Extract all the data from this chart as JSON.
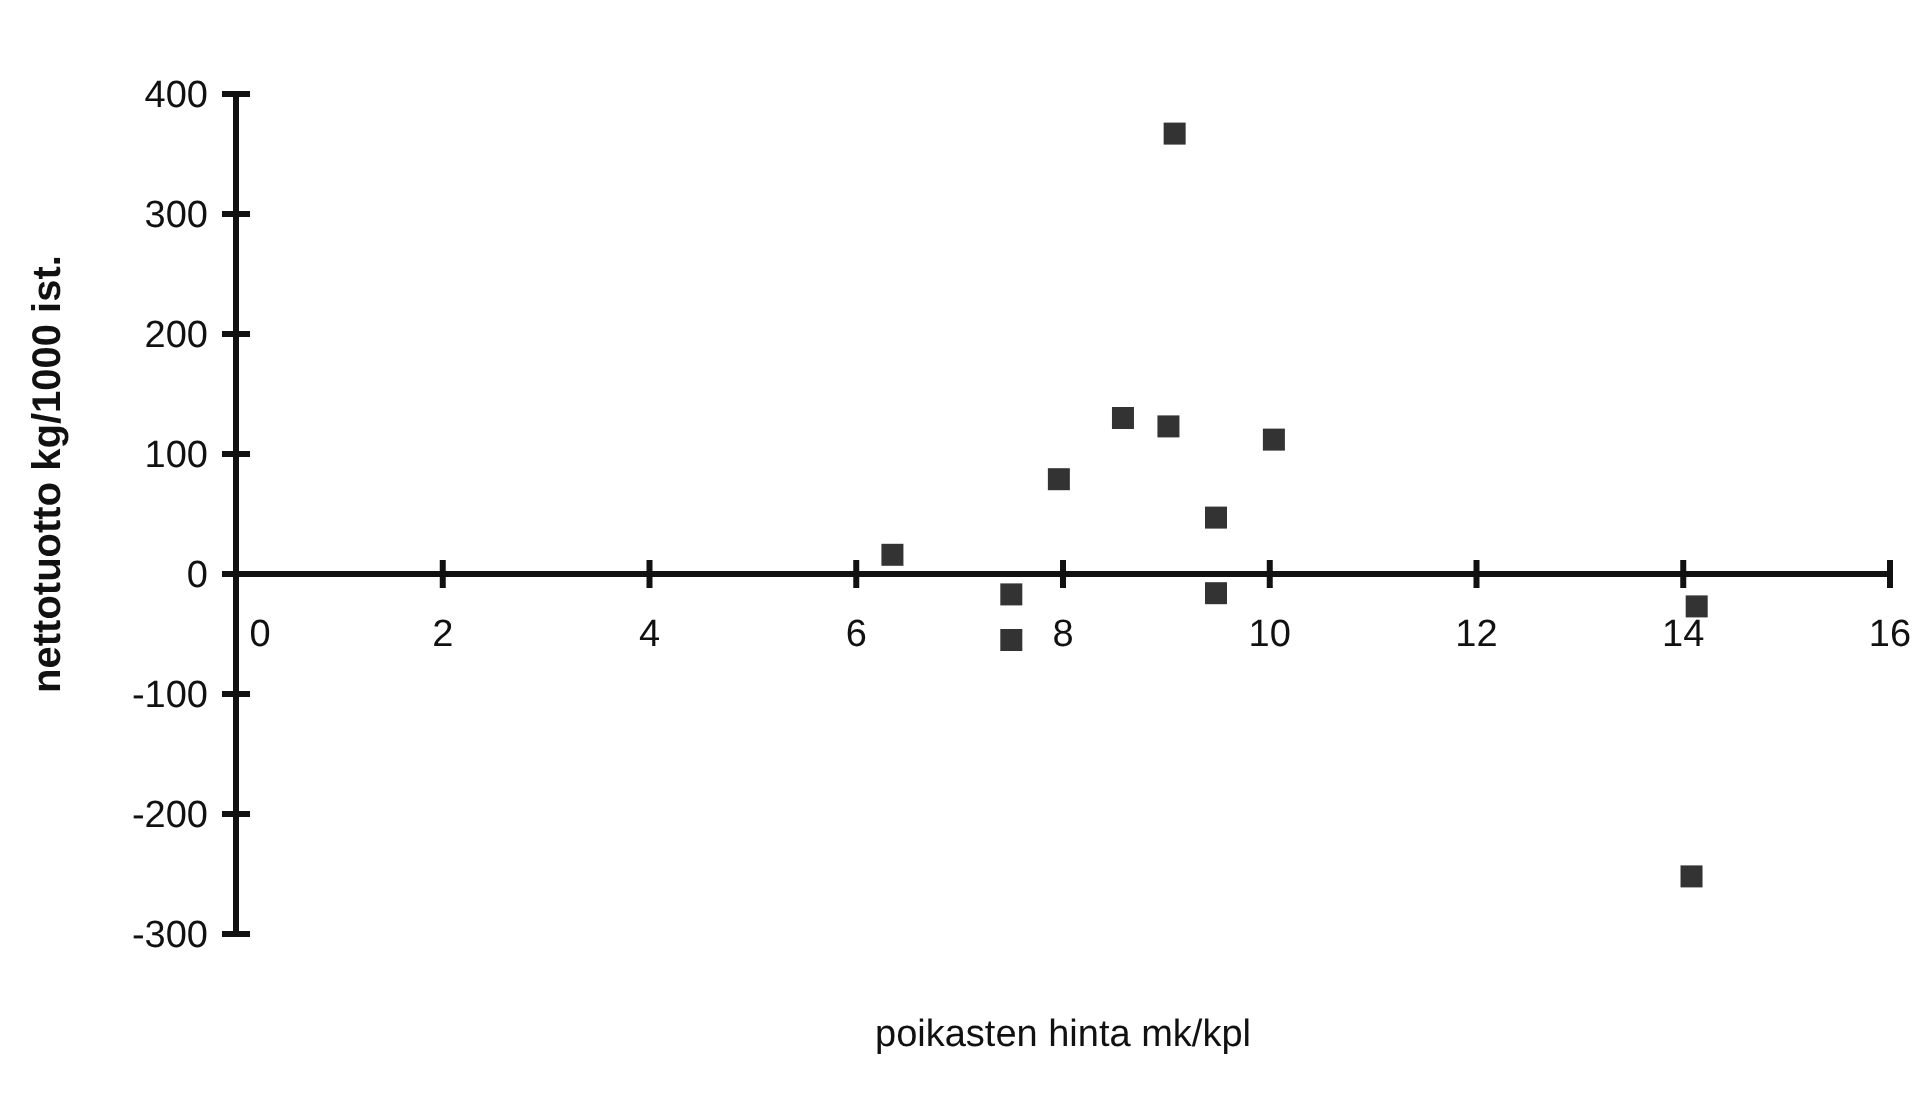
{
  "chart_data": {
    "type": "scatter",
    "xlabel": "poikasten hinta mk/kpl",
    "ylabel": "nettotuotto kg/1000 ist.",
    "xlim": [
      0,
      16
    ],
    "xticks": [
      0,
      2,
      4,
      6,
      8,
      10,
      12,
      14,
      16
    ],
    "ylim": [
      -300,
      400
    ],
    "yticks": [
      -300,
      -200,
      -100,
      0,
      100,
      200,
      300,
      400
    ],
    "marker": "square",
    "grid": false,
    "series": [
      {
        "color": "#333333",
        "x": [
          6.35,
          7.5,
          7.5,
          7.96,
          8.58,
          9.02,
          9.08,
          9.48,
          9.48,
          10.04,
          14.13,
          14.08
        ],
        "values": [
          16,
          -17,
          -55,
          79,
          130,
          123,
          367,
          47,
          -16,
          112,
          -27,
          -252
        ]
      }
    ]
  }
}
